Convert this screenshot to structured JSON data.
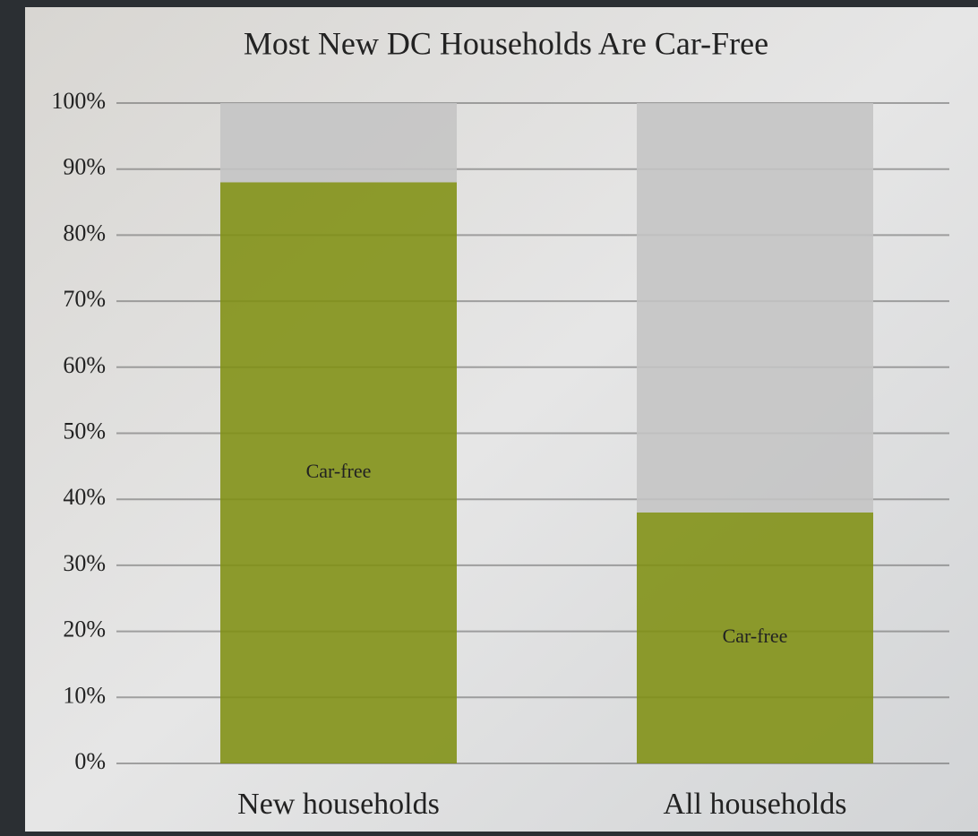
{
  "chart_data": {
    "type": "stacked_bar",
    "title": "Most New DC Households Are Car-Free",
    "categories": [
      "New households",
      "All households"
    ],
    "series": [
      {
        "name": "Car-free",
        "color": "#7f8f12",
        "values": [
          88,
          38
        ]
      },
      {
        "color": "#c4c4c4",
        "values": [
          12,
          62
        ]
      }
    ],
    "ylim": [
      0,
      100
    ],
    "yticks": [
      {
        "value": 0,
        "label": "0%"
      },
      {
        "value": 10,
        "label": "10%"
      },
      {
        "value": 20,
        "label": "20%"
      },
      {
        "value": 30,
        "label": "30%"
      },
      {
        "value": 40,
        "label": "40%"
      },
      {
        "value": 50,
        "label": "50%"
      },
      {
        "value": 60,
        "label": "60%"
      },
      {
        "value": 70,
        "label": "70%"
      },
      {
        "value": 80,
        "label": "80%"
      },
      {
        "value": 90,
        "label": "90%"
      },
      {
        "value": 100,
        "label": "100%"
      }
    ],
    "grid": true
  }
}
